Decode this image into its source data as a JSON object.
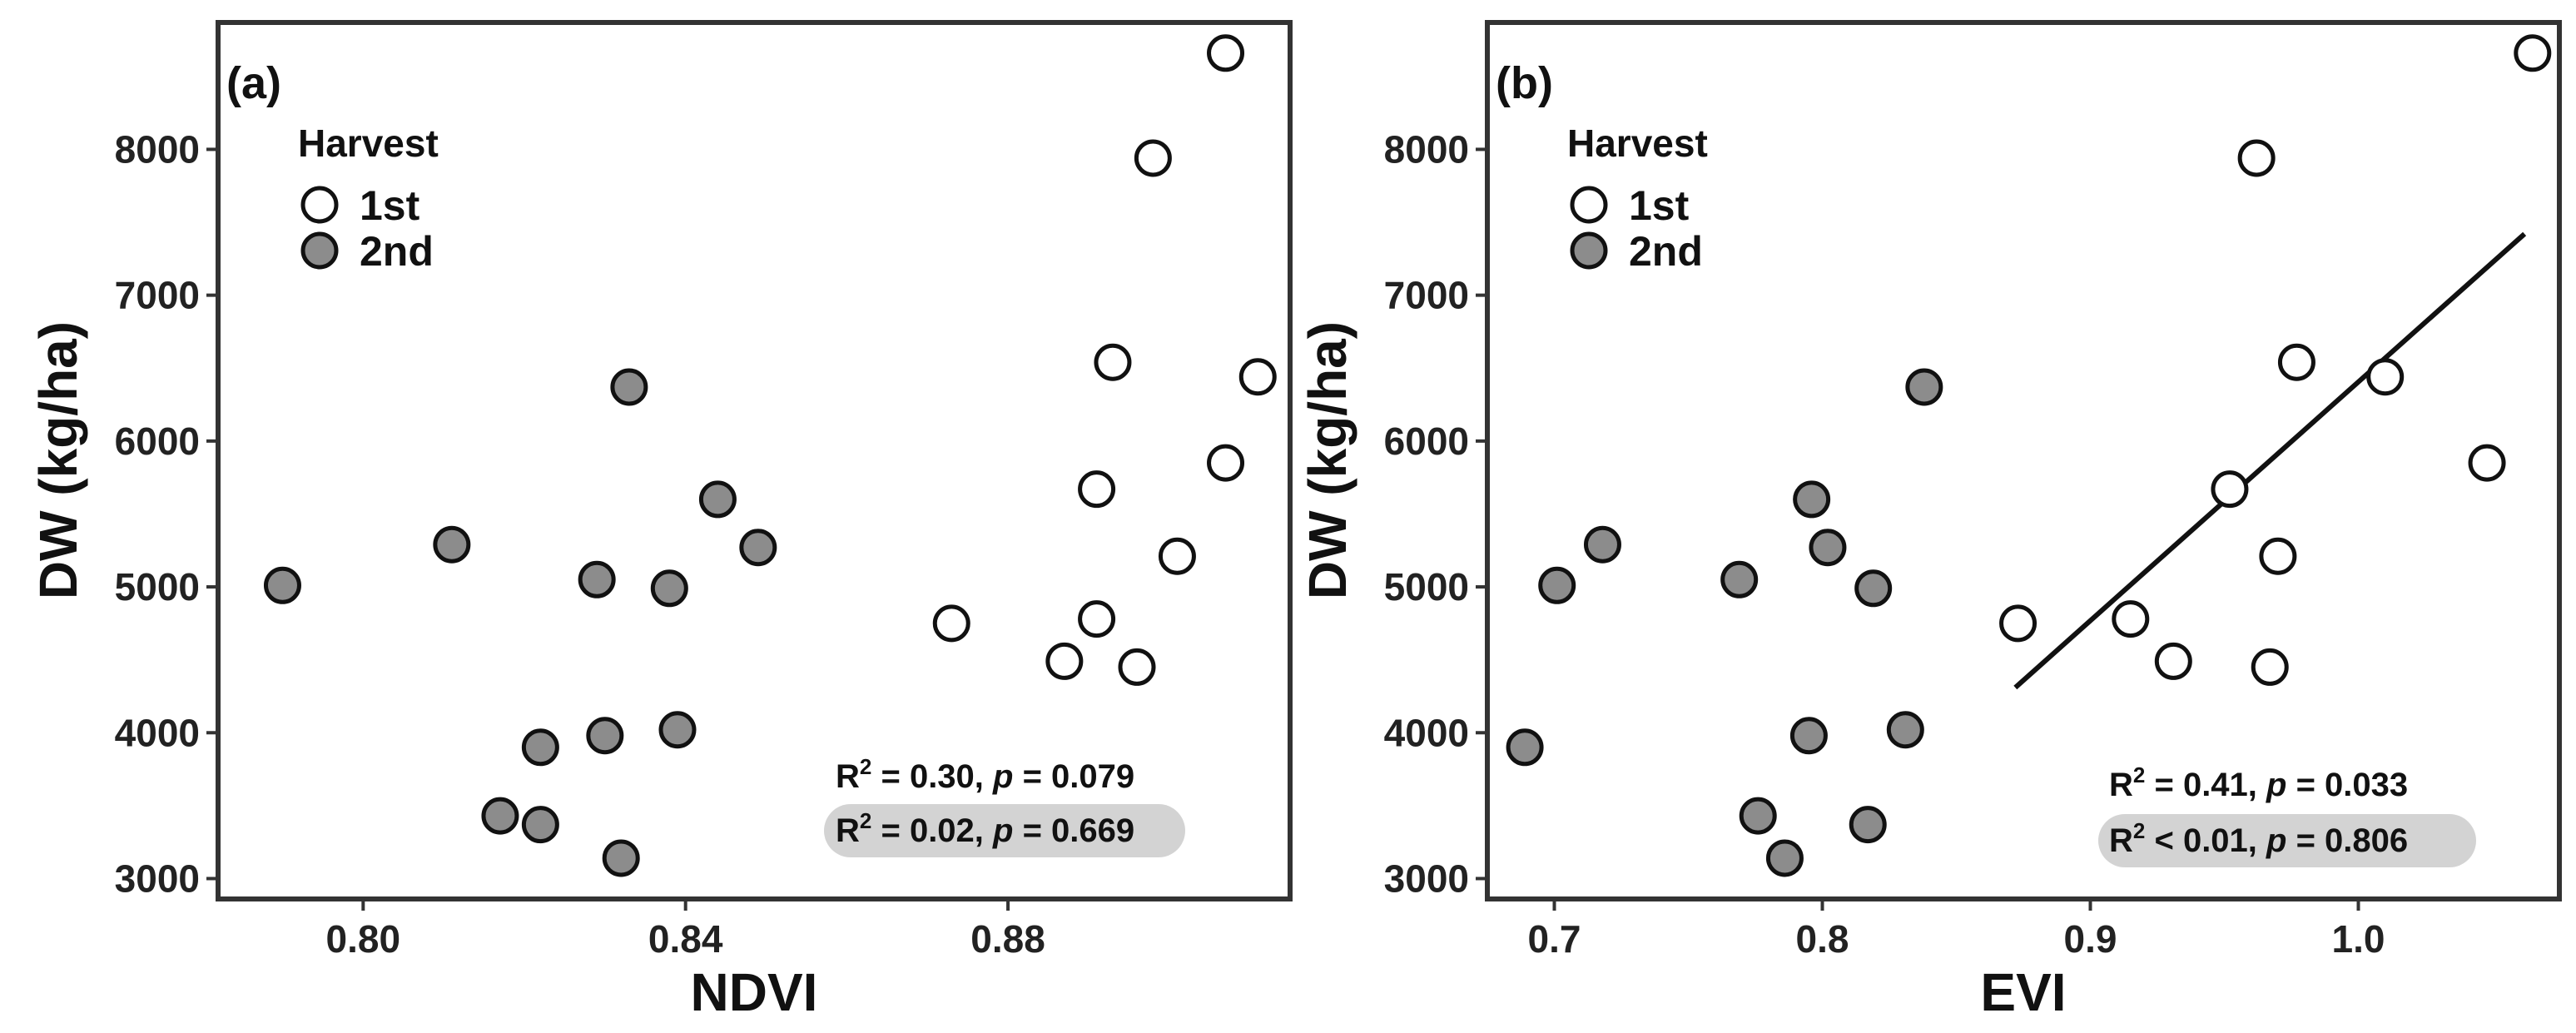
{
  "chart_data": [
    {
      "type": "scatter",
      "panel_label": "(a)",
      "xlabel": "NDVI",
      "ylabel": "DW (kg/ha)",
      "xlim": [
        0.782,
        0.915
      ],
      "ylim": [
        2860,
        8870
      ],
      "x_ticks": [
        0.8,
        0.84,
        0.88
      ],
      "x_tick_labels": [
        "0.80",
        "0.84",
        "0.88"
      ],
      "y_ticks": [
        3000,
        4000,
        5000,
        6000,
        7000,
        8000
      ],
      "y_tick_labels": [
        "3000",
        "4000",
        "5000",
        "6000",
        "7000",
        "8000"
      ],
      "legend": {
        "title": "Harvest",
        "position": "top-left"
      },
      "series": [
        {
          "name": "1st",
          "color": "#ffffff",
          "x": [
            0.907,
            0.898,
            0.893,
            0.911,
            0.891,
            0.907,
            0.901,
            0.873,
            0.891,
            0.887,
            0.896
          ],
          "y": [
            8660,
            7940,
            6540,
            6440,
            5670,
            5850,
            5210,
            4750,
            4780,
            4490,
            4450
          ]
        },
        {
          "name": "2nd",
          "color": "#8c8c8c",
          "x": [
            0.79,
            0.811,
            0.833,
            0.844,
            0.849,
            0.829,
            0.838,
            0.839,
            0.83,
            0.822,
            0.817,
            0.822,
            0.832
          ],
          "y": [
            5010,
            5290,
            6370,
            5600,
            5270,
            5050,
            4990,
            4020,
            3980,
            3900,
            3430,
            3370,
            3140
          ]
        }
      ],
      "annotations": [
        {
          "text": "R² = 0.30, p = 0.079",
          "r2": "R",
          "sup": "2",
          "mid": " = 0.30, ",
          "p": "p",
          "tail": " = 0.079",
          "highlight": false
        },
        {
          "text": "R² = 0.02, p = 0.669",
          "r2": "R",
          "sup": "2",
          "mid": " = 0.02, ",
          "p": "p",
          "tail": " = 0.669",
          "highlight": true
        }
      ],
      "fit_line": null
    },
    {
      "type": "scatter",
      "panel_label": "(b)",
      "xlabel": "EVI",
      "ylabel": "DW (kg/ha)",
      "xlim": [
        0.675,
        1.075
      ],
      "ylim": [
        2860,
        8870
      ],
      "x_ticks": [
        0.7,
        0.8,
        0.9,
        1.0
      ],
      "x_tick_labels": [
        "0.7",
        "0.8",
        "0.9",
        "1.0"
      ],
      "y_ticks": [
        3000,
        4000,
        5000,
        6000,
        7000,
        8000
      ],
      "y_tick_labels": [
        "3000",
        "4000",
        "5000",
        "6000",
        "7000",
        "8000"
      ],
      "legend": {
        "title": "Harvest",
        "position": "top-left"
      },
      "series": [
        {
          "name": "1st",
          "color": "#ffffff",
          "x": [
            1.065,
            0.962,
            0.977,
            1.01,
            0.952,
            1.048,
            0.97,
            0.873,
            0.915,
            0.931,
            0.967
          ],
          "y": [
            8660,
            7940,
            6540,
            6440,
            5670,
            5850,
            5210,
            4750,
            4780,
            4490,
            4450
          ]
        },
        {
          "name": "2nd",
          "color": "#8c8c8c",
          "x": [
            0.701,
            0.718,
            0.838,
            0.796,
            0.802,
            0.769,
            0.819,
            0.831,
            0.795,
            0.689,
            0.776,
            0.817,
            0.786
          ],
          "y": [
            5010,
            5290,
            6370,
            5600,
            5270,
            5050,
            4990,
            4020,
            3980,
            3900,
            3430,
            3370,
            3140
          ]
        }
      ],
      "annotations": [
        {
          "text": "R² = 0.41, p = 0.033",
          "r2": "R",
          "sup": "2",
          "mid": " = 0.41, ",
          "p": "p",
          "tail": " = 0.033",
          "highlight": false
        },
        {
          "text": "R² < 0.01, p = 0.806",
          "r2": "R",
          "sup": "2",
          "mid": " < 0.01, ",
          "p": "p",
          "tail": " = 0.806",
          "highlight": true
        }
      ],
      "fit_line": {
        "x": [
          0.872,
          1.062
        ],
        "y": [
          4310,
          7420
        ]
      }
    }
  ]
}
